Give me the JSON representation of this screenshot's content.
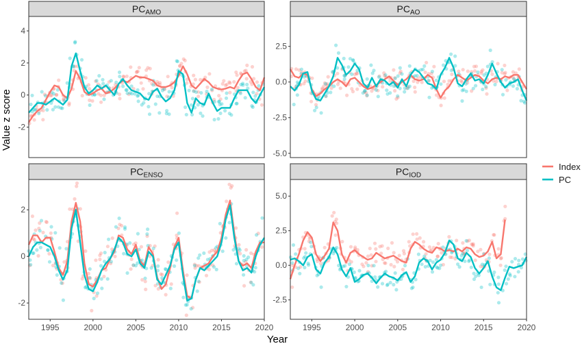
{
  "figure": {
    "ylabel": "Value z score",
    "xlabel": "Year",
    "colors": {
      "index": "#F8766D",
      "pc": "#00BFC4",
      "strip": "#D9D9D9",
      "frame": "#333333",
      "grid": "#EBEBEB"
    }
  },
  "legend": {
    "placement": "right",
    "entries": [
      {
        "label": "Index",
        "color": "#F8766D"
      },
      {
        "label": "PC",
        "color": "#00BFC4"
      }
    ]
  },
  "chart_data": [
    {
      "type": "line",
      "strip": {
        "main": "PC",
        "sub": "AMO"
      },
      "xlim": [
        1992.5,
        2020
      ],
      "ylim": [
        -3.9,
        4.9
      ],
      "xticks": [
        1995,
        2000,
        2005,
        2010,
        2015,
        2020
      ],
      "yticks": [
        -2,
        0,
        2,
        4
      ],
      "show_x_axis": false,
      "series": [
        {
          "name": "Index",
          "color": "#F8766D",
          "x": [
            1992.5,
            1993,
            1993.5,
            1994,
            1994.5,
            1995,
            1995.5,
            1996,
            1996.5,
            1997,
            1997.5,
            1998,
            1998.5,
            1999,
            1999.5,
            2000,
            2000.5,
            2001,
            2001.5,
            2002,
            2002.5,
            2003,
            2003.5,
            2004,
            2004.5,
            2005,
            2005.5,
            2006,
            2006.5,
            2007,
            2007.5,
            2008,
            2008.5,
            2009,
            2009.5,
            2010,
            2010.5,
            2011,
            2011.5,
            2012,
            2012.5,
            2013,
            2013.5,
            2014,
            2014.5,
            2015,
            2015.5,
            2016,
            2016.5,
            2017,
            2017.5,
            2018,
            2018.5,
            2019,
            2019.5,
            2020
          ],
          "y": [
            -1.7,
            -1.3,
            -1.0,
            -0.8,
            -0.3,
            0.2,
            0.6,
            0.5,
            0.0,
            -0.2,
            0.4,
            1.5,
            1.0,
            0.2,
            0.0,
            0.1,
            0.3,
            0.4,
            0.1,
            0.2,
            0.4,
            0.7,
            0.9,
            0.8,
            1.0,
            1.2,
            1.1,
            1.1,
            1.0,
            0.9,
            0.6,
            0.5,
            0.5,
            0.6,
            0.8,
            1.2,
            1.8,
            1.3,
            0.6,
            0.4,
            0.7,
            1.0,
            0.8,
            0.5,
            0.4,
            0.35,
            0.4,
            0.5,
            0.4,
            0.9,
            1.3,
            1.4,
            1.0,
            0.5,
            0.3,
            1.1
          ]
        },
        {
          "name": "PC",
          "color": "#00BFC4",
          "x": [
            1992.5,
            1993,
            1993.5,
            1994,
            1994.5,
            1995,
            1995.5,
            1996,
            1996.5,
            1997,
            1997.5,
            1998,
            1998.5,
            1999,
            1999.5,
            2000,
            2000.5,
            2001,
            2001.5,
            2002,
            2002.5,
            2003,
            2003.5,
            2004,
            2004.5,
            2005,
            2005.5,
            2006,
            2006.5,
            2007,
            2007.5,
            2008,
            2008.5,
            2009,
            2009.5,
            2010,
            2010.5,
            2011,
            2011.5,
            2012,
            2012.5,
            2013,
            2013.5,
            2014,
            2014.5,
            2015,
            2015.5,
            2016,
            2016.5,
            2017,
            2017.5,
            2018,
            2018.5,
            2019,
            2019.5,
            2020
          ],
          "y": [
            -1.1,
            -0.8,
            -0.5,
            -0.5,
            -0.6,
            -0.4,
            -0.2,
            -0.4,
            -0.6,
            -0.3,
            1.8,
            2.6,
            1.5,
            0.5,
            0.1,
            0.3,
            0.6,
            0.4,
            0.6,
            0.3,
            0.0,
            0.7,
            1.0,
            0.6,
            0.3,
            0.2,
            0.1,
            -0.2,
            -0.3,
            0.2,
            0.4,
            -0.1,
            -0.4,
            -0.2,
            0.3,
            1.5,
            1.3,
            -0.5,
            -1.1,
            -0.2,
            -0.5,
            -0.6,
            0.1,
            -0.5,
            -1.0,
            -0.8,
            -0.8,
            -0.8,
            -0.2,
            0.3,
            0.3,
            0.3,
            -0.2,
            -0.5,
            0.0,
            0.5
          ]
        }
      ]
    },
    {
      "type": "line",
      "strip": {
        "main": "PC",
        "sub": "AO"
      },
      "xlim": [
        1992.5,
        2020
      ],
      "ylim": [
        -5.3,
        4.6
      ],
      "xticks": [
        1995,
        2000,
        2005,
        2010,
        2015,
        2020
      ],
      "yticks": [
        -5.0,
        -2.5,
        0.0,
        2.5
      ],
      "ytick_labels": [
        "-5.0",
        "-2.5",
        "0.0",
        "2.5"
      ],
      "show_x_axis": false,
      "series": [
        {
          "name": "Index",
          "color": "#F8766D",
          "x": [
            1992.5,
            1993,
            1993.5,
            1994,
            1994.5,
            1995,
            1995.5,
            1996,
            1996.5,
            1997,
            1997.5,
            1998,
            1998.5,
            1999,
            1999.5,
            2000,
            2000.5,
            2001,
            2001.5,
            2002,
            2002.5,
            2003,
            2003.5,
            2004,
            2004.5,
            2005,
            2005.5,
            2006,
            2006.5,
            2007,
            2007.5,
            2008,
            2008.5,
            2009,
            2009.5,
            2010,
            2010.5,
            2011,
            2011.5,
            2012,
            2012.5,
            2013,
            2013.5,
            2014,
            2014.5,
            2015,
            2015.5,
            2016,
            2016.5,
            2017,
            2017.5,
            2018,
            2018.5,
            2019,
            2019.5,
            2020
          ],
          "y": [
            0.9,
            0.4,
            0.3,
            0.6,
            0.5,
            -0.5,
            -1.0,
            -0.8,
            -0.5,
            -0.3,
            0.0,
            0.2,
            0.0,
            -0.3,
            0.2,
            0.3,
            0.0,
            -0.3,
            -0.5,
            -0.4,
            -0.2,
            0.0,
            0.2,
            0.4,
            0.1,
            -0.2,
            0.0,
            0.2,
            0.5,
            0.2,
            0.1,
            0.2,
            0.5,
            0.3,
            -0.5,
            -1.1,
            -0.6,
            -0.3,
            0.2,
            0.5,
            0.3,
            0.1,
            0.3,
            0.5,
            0.4,
            0.1,
            -0.1,
            0.2,
            0.3,
            0.2,
            0.4,
            0.3,
            0.5,
            0.5,
            0.0,
            -0.5
          ]
        },
        {
          "name": "PC",
          "color": "#00BFC4",
          "x": [
            1992.5,
            1993,
            1993.5,
            1994,
            1994.5,
            1995,
            1995.5,
            1996,
            1996.5,
            1997,
            1997.5,
            1998,
            1998.5,
            1999,
            1999.5,
            2000,
            2000.5,
            2001,
            2001.5,
            2002,
            2002.5,
            2003,
            2003.5,
            2004,
            2004.5,
            2005,
            2005.5,
            2006,
            2006.5,
            2007,
            2007.5,
            2008,
            2008.5,
            2009,
            2009.5,
            2010,
            2010.5,
            2011,
            2011.5,
            2012,
            2012.5,
            2013,
            2013.5,
            2014,
            2014.5,
            2015,
            2015.5,
            2016,
            2016.5,
            2017,
            2017.5,
            2018,
            2018.5,
            2019,
            2019.5,
            2020
          ],
          "y": [
            -0.3,
            -0.6,
            -0.2,
            0.6,
            0.7,
            -0.6,
            -1.2,
            -1.3,
            -0.8,
            -0.3,
            0.4,
            1.7,
            1.2,
            0.5,
            0.8,
            1.3,
            0.9,
            -0.1,
            -0.4,
            0.3,
            -0.3,
            0.2,
            0.1,
            -0.2,
            0.0,
            -0.4,
            0.2,
            -0.3,
            0.5,
            0.9,
            0.7,
            0.3,
            -0.1,
            -0.2,
            -0.5,
            0.5,
            1.0,
            1.7,
            1.0,
            -0.1,
            -0.3,
            0.2,
            0.6,
            0.1,
            0.2,
            -0.1,
            0.5,
            1.3,
            0.6,
            0.0,
            -0.4,
            -0.1,
            0.0,
            0.2,
            -0.6,
            -1.3
          ]
        }
      ]
    },
    {
      "type": "line",
      "strip": {
        "main": "PC",
        "sub": "ENSO"
      },
      "xlim": [
        1992.5,
        2020
      ],
      "ylim": [
        -2.7,
        3.3
      ],
      "xticks": [
        1995,
        2000,
        2005,
        2010,
        2015,
        2020
      ],
      "yticks": [
        -2,
        0,
        2
      ],
      "show_x_axis": true,
      "series": [
        {
          "name": "Index",
          "color": "#F8766D",
          "x": [
            1992.5,
            1993,
            1993.5,
            1994,
            1994.5,
            1995,
            1995.5,
            1996,
            1996.5,
            1997,
            1997.5,
            1998,
            1998.5,
            1999,
            1999.5,
            2000,
            2000.5,
            2001,
            2001.5,
            2002,
            2002.5,
            2003,
            2003.5,
            2004,
            2004.5,
            2005,
            2005.5,
            2006,
            2006.5,
            2007,
            2007.5,
            2008,
            2008.5,
            2009,
            2009.5,
            2010,
            2010.5,
            2011,
            2011.5,
            2012,
            2012.5,
            2013,
            2013.5,
            2014,
            2014.5,
            2015,
            2015.5,
            2016,
            2016.5,
            2017,
            2017.5,
            2018,
            2018.5,
            2019,
            2019.5,
            2020
          ],
          "y": [
            0.5,
            0.9,
            0.9,
            0.6,
            0.8,
            0.8,
            0.2,
            -0.5,
            -0.8,
            -0.2,
            1.5,
            2.3,
            1.5,
            -0.3,
            -1.2,
            -1.3,
            -1.0,
            -0.6,
            -0.5,
            -0.1,
            0.2,
            0.9,
            0.8,
            0.3,
            0.1,
            0.5,
            -0.2,
            -0.4,
            0.4,
            0.1,
            -0.9,
            -1.4,
            -1.2,
            -0.5,
            0.4,
            0.8,
            -0.6,
            -1.7,
            -1.8,
            -1.0,
            -0.5,
            -0.4,
            -0.3,
            0.0,
            0.2,
            0.8,
            1.8,
            2.4,
            1.0,
            -0.2,
            -0.4,
            -0.3,
            -0.5,
            0.2,
            0.6,
            0.6
          ]
        },
        {
          "name": "PC",
          "color": "#00BFC4",
          "x": [
            1992.5,
            1993,
            1993.5,
            1994,
            1994.5,
            1995,
            1995.5,
            1996,
            1996.5,
            1997,
            1997.5,
            1998,
            1998.5,
            1999,
            1999.5,
            2000,
            2000.5,
            2001,
            2001.5,
            2002,
            2002.5,
            2003,
            2003.5,
            2004,
            2004.5,
            2005,
            2005.5,
            2006,
            2006.5,
            2007,
            2007.5,
            2008,
            2008.5,
            2009,
            2009.5,
            2010,
            2010.5,
            2011,
            2011.5,
            2012,
            2012.5,
            2013,
            2013.5,
            2014,
            2014.5,
            2015,
            2015.5,
            2016,
            2016.5,
            2017,
            2017.5,
            2018,
            2018.5,
            2019,
            2019.5,
            2020
          ],
          "y": [
            0.0,
            0.4,
            0.6,
            0.6,
            0.5,
            0.4,
            0.0,
            -0.6,
            -1.0,
            -0.6,
            1.2,
            2.0,
            0.6,
            -0.8,
            -1.4,
            -1.5,
            -1.1,
            -0.6,
            -0.3,
            -0.1,
            0.3,
            0.8,
            0.6,
            0.1,
            0.0,
            0.3,
            -0.3,
            -0.5,
            0.2,
            0.0,
            -1.0,
            -1.2,
            -0.8,
            -0.4,
            0.3,
            0.6,
            -0.8,
            -1.9,
            -1.8,
            -1.0,
            -0.5,
            -0.6,
            -0.4,
            -0.2,
            0.0,
            0.6,
            1.6,
            2.2,
            0.8,
            -0.2,
            -0.6,
            -0.5,
            -0.7,
            0.0,
            0.5,
            0.8
          ]
        }
      ]
    },
    {
      "type": "line",
      "strip": {
        "main": "PC",
        "sub": "IOD"
      },
      "xlim": [
        1992.5,
        2020
      ],
      "ylim": [
        -3.9,
        6.2
      ],
      "xticks": [
        1995,
        2000,
        2005,
        2010,
        2015,
        2020
      ],
      "yticks": [
        -2.5,
        0.0,
        2.5,
        5.0
      ],
      "ytick_labels": [
        "-2.5",
        "0.0",
        "2.5",
        "5.0"
      ],
      "show_x_axis": true,
      "series": [
        {
          "name": "Index",
          "color": "#F8766D",
          "x": [
            1992.5,
            1993,
            1993.5,
            1994,
            1994.5,
            1995,
            1995.5,
            1996,
            1996.5,
            1997,
            1997.5,
            1998,
            1998.5,
            1999,
            1999.5,
            2000,
            2000.5,
            2001,
            2001.5,
            2002,
            2002.5,
            2003,
            2003.5,
            2004,
            2004.5,
            2005,
            2005.5,
            2006,
            2006.5,
            2007,
            2007.5,
            2008,
            2008.5,
            2009,
            2009.5,
            2010,
            2010.5,
            2011,
            2011.5,
            2012,
            2012.5,
            2013,
            2013.5,
            2014,
            2014.5,
            2015,
            2015.5,
            2016,
            2016.5,
            2017,
            2017.5
          ],
          "y": [
            -1.0,
            0.0,
            0.8,
            1.8,
            2.4,
            2.0,
            0.8,
            0.3,
            0.7,
            1.2,
            3.1,
            2.5,
            0.8,
            0.2,
            0.9,
            1.1,
            0.8,
            0.6,
            0.4,
            0.5,
            0.9,
            0.7,
            0.5,
            0.6,
            0.7,
            0.5,
            0.3,
            0.2,
            1.2,
            1.7,
            1.5,
            1.2,
            1.0,
            0.9,
            1.3,
            1.2,
            1.0,
            1.1,
            1.0,
            1.2,
            1.0,
            1.3,
            1.2,
            0.8,
            0.6,
            0.7,
            1.0,
            1.7,
            0.5,
            0.8,
            3.3
          ]
        },
        {
          "name": "PC",
          "color": "#00BFC4",
          "x": [
            1992.5,
            1993,
            1993.5,
            1994,
            1994.5,
            1995,
            1995.5,
            1996,
            1996.5,
            1997,
            1997.5,
            1998,
            1998.5,
            1999,
            1999.5,
            2000,
            2000.5,
            2001,
            2001.5,
            2002,
            2002.5,
            2003,
            2003.5,
            2004,
            2004.5,
            2005,
            2005.5,
            2006,
            2006.5,
            2007,
            2007.5,
            2008,
            2008.5,
            2009,
            2009.5,
            2010,
            2010.5,
            2011,
            2011.5,
            2012,
            2012.5,
            2013,
            2013.5,
            2014,
            2014.5,
            2015,
            2015.5,
            2016,
            2016.5,
            2017,
            2017.5,
            2018,
            2018.5,
            2019,
            2019.5,
            2020
          ],
          "y": [
            0.4,
            0.5,
            0.3,
            0.0,
            0.6,
            0.8,
            -0.3,
            -0.6,
            0.2,
            0.6,
            1.3,
            0.8,
            -0.3,
            -0.8,
            -0.2,
            -1.2,
            -1.0,
            -0.7,
            -0.6,
            -0.9,
            -1.3,
            -0.9,
            -0.6,
            -0.8,
            -0.9,
            -1.1,
            -0.7,
            -0.5,
            -1.2,
            -0.8,
            0.2,
            0.5,
            0.3,
            -0.3,
            0.2,
            0.4,
            0.9,
            1.8,
            1.5,
            0.5,
            0.3,
            0.9,
            0.6,
            -0.2,
            -0.6,
            -0.2,
            0.3,
            -0.8,
            -1.6,
            -1.8,
            -0.9,
            -0.1,
            -0.2,
            -0.1,
            0.0,
            0.6
          ]
        }
      ]
    }
  ]
}
